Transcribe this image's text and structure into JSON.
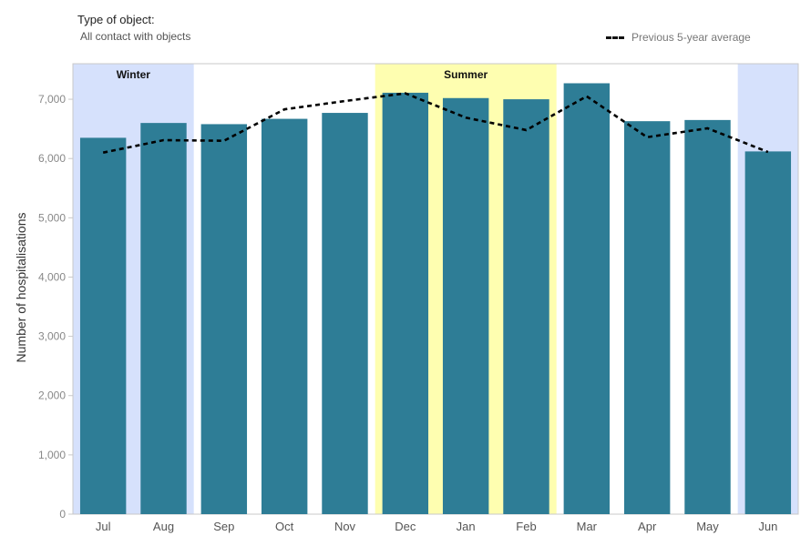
{
  "filter": {
    "title": "Type of object:",
    "value": "All contact with objects"
  },
  "legend": {
    "label": "Previous 5-year average",
    "line_style": "dashed",
    "line_color": "#000000"
  },
  "colors": {
    "bar": "#2e7d96",
    "winter_band": "#d6e1fc",
    "summer_band": "#fefeb0"
  },
  "season_bands": [
    {
      "label": "Winter",
      "from": "Jul",
      "to": "Aug",
      "color": "#d6e1fc"
    },
    {
      "label": "Summer",
      "from": "Dec",
      "to": "Feb",
      "color": "#fefeb0"
    },
    {
      "label": "",
      "from": "Jun",
      "to": "Jun",
      "color": "#d6e1fc"
    }
  ],
  "chart_data": {
    "type": "bar",
    "categories": [
      "Jul",
      "Aug",
      "Sep",
      "Oct",
      "Nov",
      "Dec",
      "Jan",
      "Feb",
      "Mar",
      "Apr",
      "May",
      "Jun"
    ],
    "series": [
      {
        "values": [
          6350,
          6600,
          6580,
          6670,
          6770,
          7110,
          7020,
          7000,
          7270,
          6630,
          6650,
          6120
        ]
      },
      {
        "name": "Previous 5-year average",
        "type": "line",
        "style": "dashed",
        "values": [
          6100,
          6310,
          6300,
          6830,
          6970,
          7100,
          6690,
          6480,
          7050,
          6360,
          6510,
          6110
        ]
      }
    ],
    "xlabel": "",
    "ylabel": "Number of hospitalisations",
    "ylim": [
      0,
      7600
    ],
    "yticks": [
      0,
      1000,
      2000,
      3000,
      4000,
      5000,
      6000,
      7000
    ],
    "ytick_labels": [
      "0",
      "1,000",
      "2,000",
      "3,000",
      "4,000",
      "5,000",
      "6,000",
      "7,000"
    ],
    "grid": false
  }
}
